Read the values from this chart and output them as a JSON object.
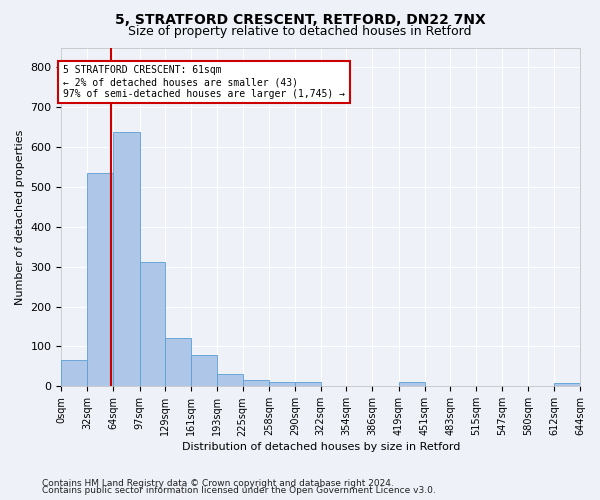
{
  "title1": "5, STRATFORD CRESCENT, RETFORD, DN22 7NX",
  "title2": "Size of property relative to detached houses in Retford",
  "xlabel": "Distribution of detached houses by size in Retford",
  "ylabel": "Number of detached properties",
  "footnote1": "Contains HM Land Registry data © Crown copyright and database right 2024.",
  "footnote2": "Contains public sector information licensed under the Open Government Licence v3.0.",
  "bin_edges": [
    0,
    32,
    64,
    97,
    129,
    161,
    193,
    225,
    258,
    290,
    322,
    354,
    386,
    419,
    451,
    483,
    515,
    547,
    580,
    612,
    644
  ],
  "bin_labels": [
    "0sqm",
    "32sqm",
    "64sqm",
    "97sqm",
    "129sqm",
    "161sqm",
    "193sqm",
    "225sqm",
    "258sqm",
    "290sqm",
    "322sqm",
    "354sqm",
    "386sqm",
    "419sqm",
    "451sqm",
    "483sqm",
    "515sqm",
    "547sqm",
    "580sqm",
    "612sqm",
    "644sqm"
  ],
  "bar_heights": [
    65,
    535,
    637,
    312,
    120,
    78,
    30,
    15,
    11,
    10,
    0,
    0,
    0,
    10,
    0,
    0,
    0,
    0,
    0,
    8
  ],
  "bar_color": "#aec6e8",
  "bar_edge_color": "#5a9fd4",
  "property_size": 61,
  "marker_line_color": "#cc0000",
  "annotation_box_color": "#cc0000",
  "annotation_line1": "5 STRATFORD CRESCENT: 61sqm",
  "annotation_line2": "← 2% of detached houses are smaller (43)",
  "annotation_line3": "97% of semi-detached houses are larger (1,745) →",
  "ylim": [
    0,
    850
  ],
  "yticks": [
    0,
    100,
    200,
    300,
    400,
    500,
    600,
    700,
    800
  ],
  "background_color": "#eef2f8",
  "grid_color": "#ffffff",
  "title1_fontsize": 10,
  "title2_fontsize": 9,
  "axis_label_fontsize": 8,
  "tick_fontsize": 7,
  "footnote_fontsize": 6.5
}
